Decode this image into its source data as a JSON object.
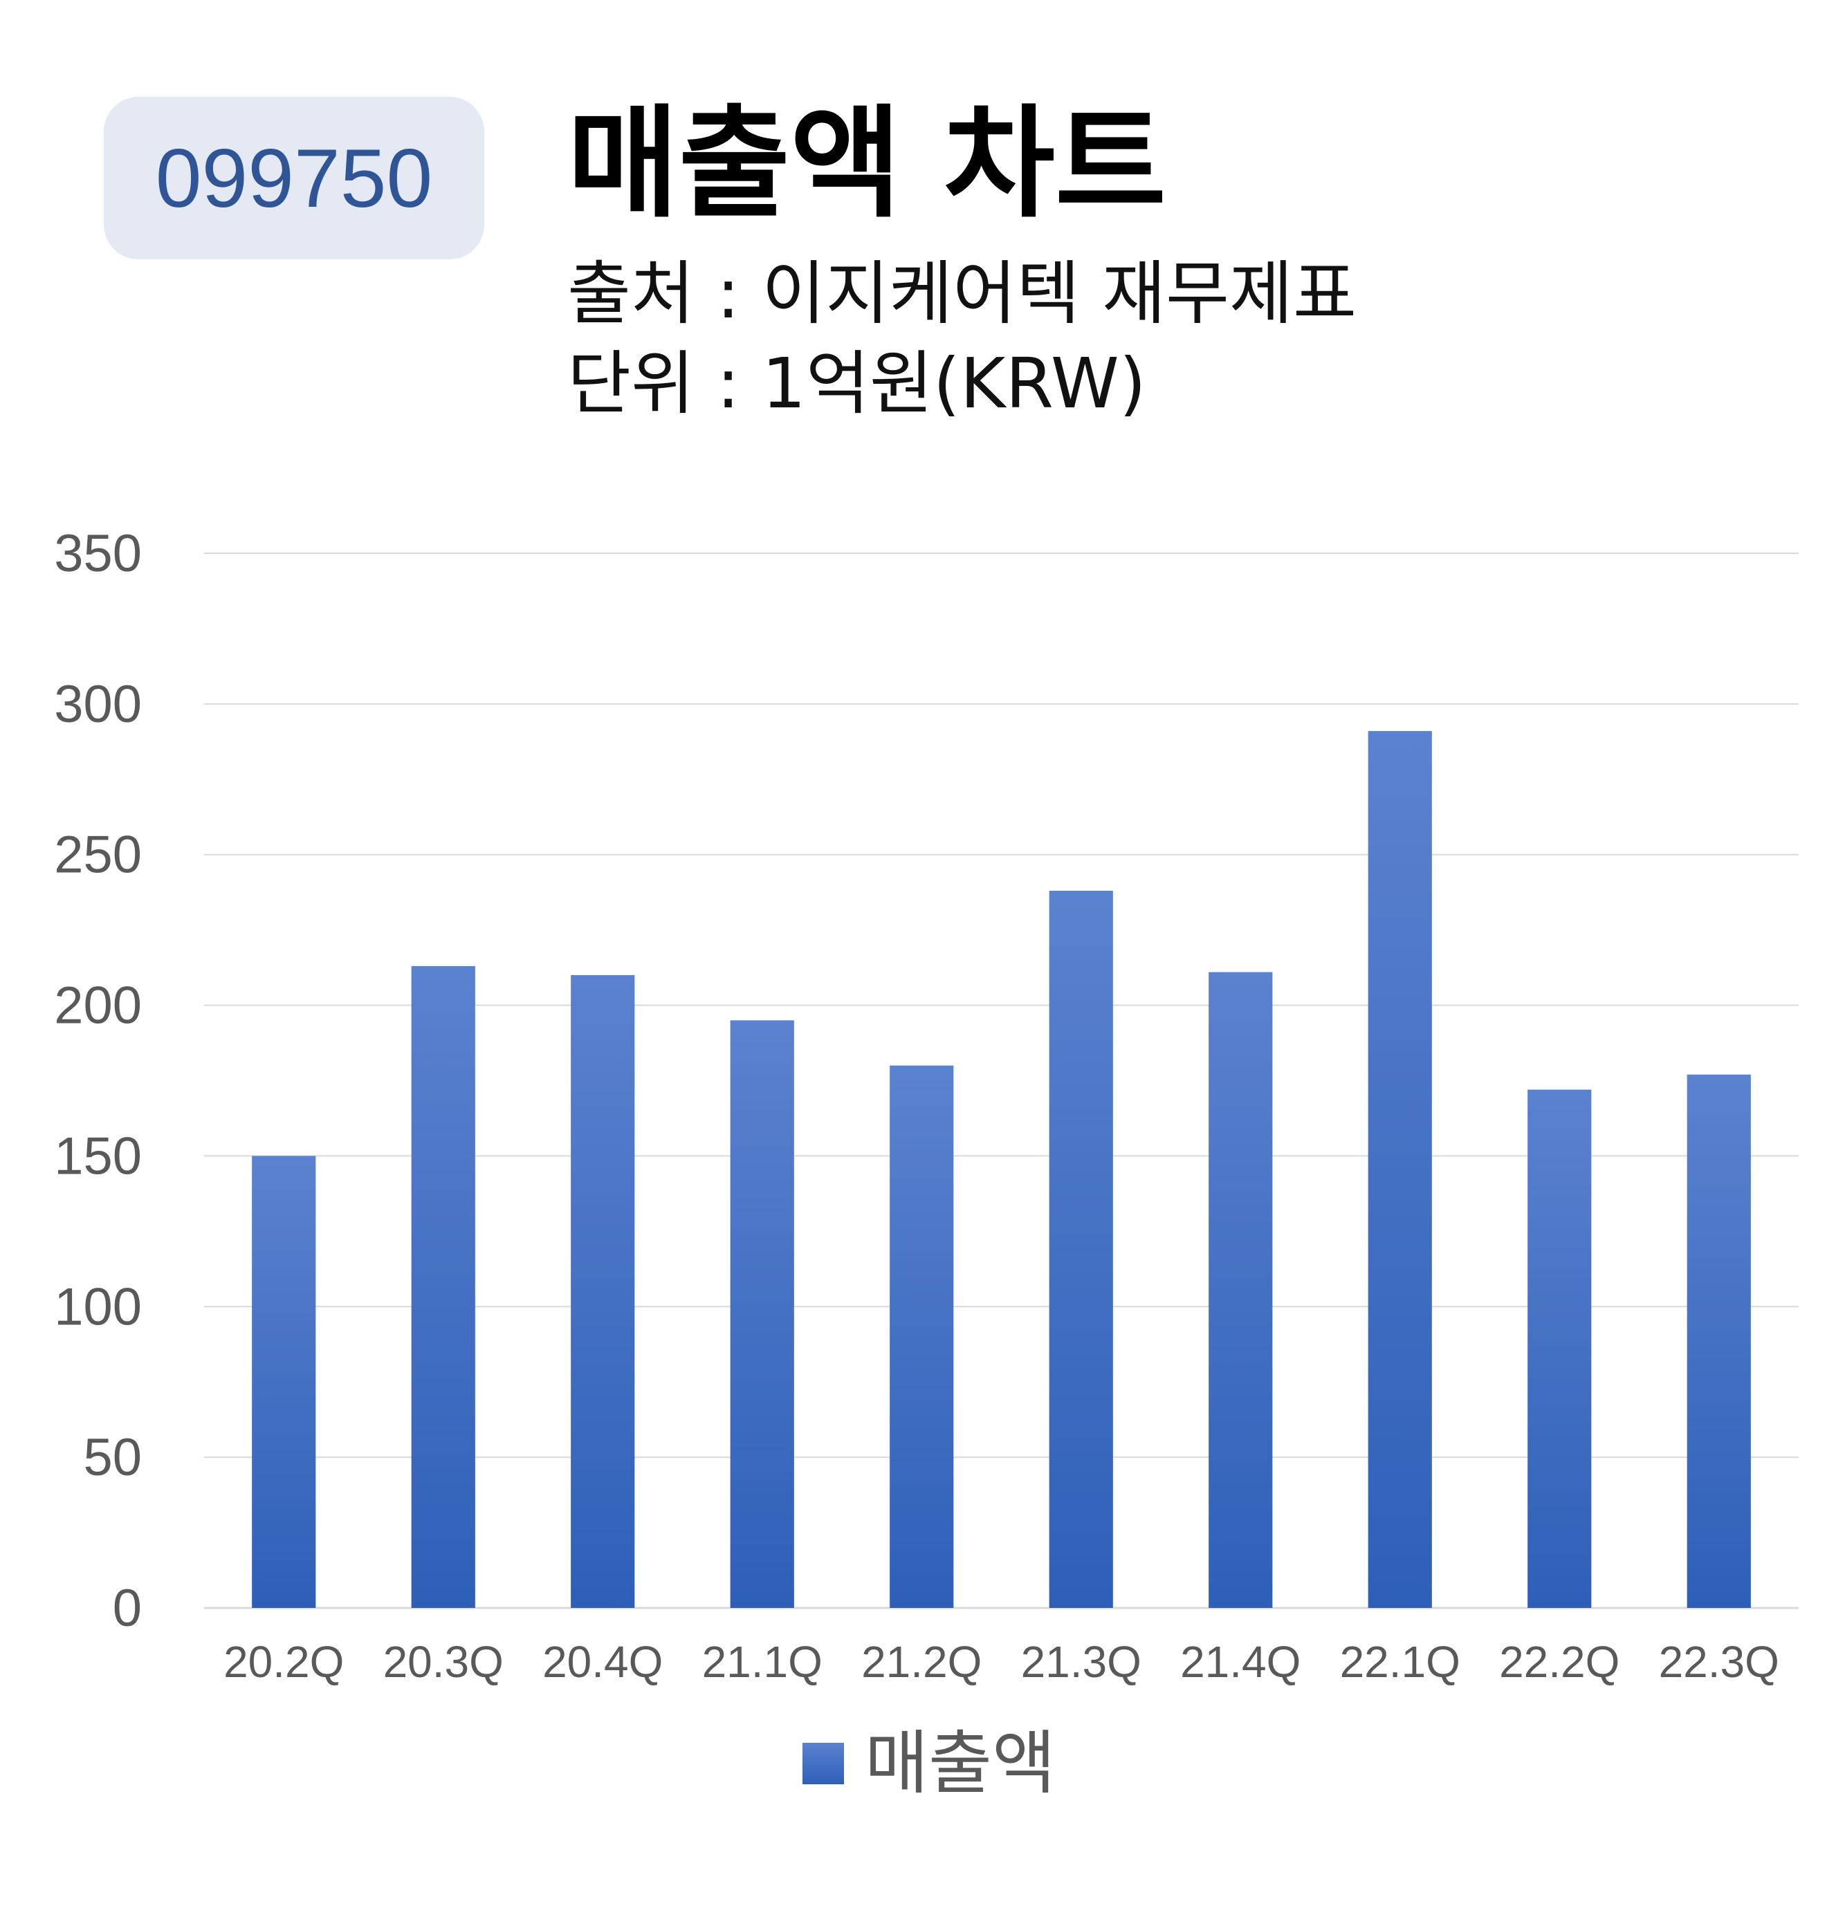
{
  "header": {
    "code": "099750",
    "title": "매출액 차트",
    "source": "출처 : 이지케어텍 재무제표",
    "unit": "단위 : 1억원(KRW)"
  },
  "colors": {
    "badge_bg": "#e4e9f4",
    "badge_text": "#2f5597",
    "bar_top": "#5b82cf",
    "bar_bottom": "#2e5fb8",
    "grid": "#d9d9d9",
    "axis_text": "#595959"
  },
  "chart_data": {
    "type": "bar",
    "categories": [
      "20.2Q",
      "20.3Q",
      "20.4Q",
      "21.1Q",
      "21.2Q",
      "21.3Q",
      "21.4Q",
      "22.1Q",
      "22.2Q",
      "22.3Q"
    ],
    "series": [
      {
        "name": "매출액",
        "values": [
          150,
          213,
          210,
          195,
          180,
          238,
          211,
          291,
          172,
          177
        ]
      }
    ],
    "ylim": [
      0,
      350
    ],
    "yticks": [
      0,
      50,
      100,
      150,
      200,
      250,
      300,
      350
    ],
    "grid": true,
    "legend": "bottom-center"
  }
}
